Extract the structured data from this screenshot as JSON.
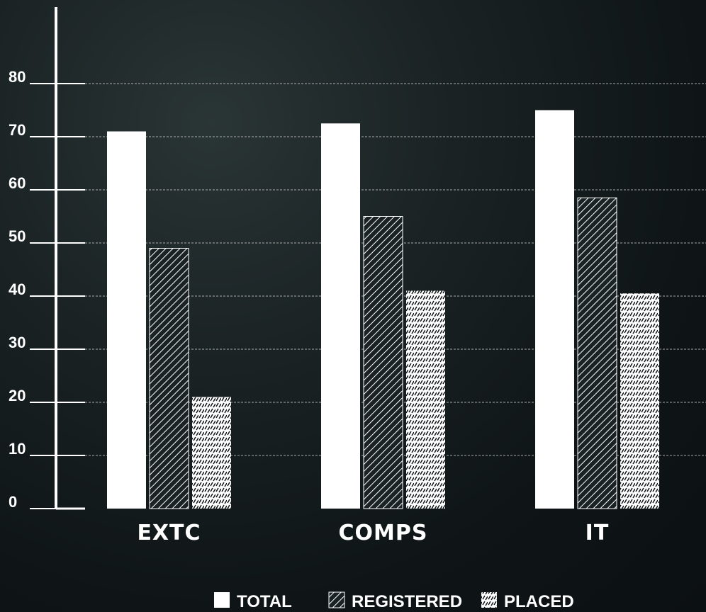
{
  "chart_data": {
    "type": "bar",
    "categories": [
      "EXTC",
      "COMPS",
      "IT"
    ],
    "series": [
      {
        "name": "TOTAL",
        "values": [
          71,
          72.5,
          75
        ],
        "pattern": "solid"
      },
      {
        "name": "REGISTERED",
        "values": [
          49,
          55,
          58.5
        ],
        "pattern": "diagonal"
      },
      {
        "name": "PLACED",
        "values": [
          21,
          41,
          40.5
        ],
        "pattern": "dashes"
      }
    ],
    "y_ticks": [
      "0",
      "10",
      "20",
      "30",
      "40",
      "50",
      "60",
      "70",
      "80"
    ],
    "ylim": [
      0,
      80
    ],
    "grid": true,
    "legend_position": "bottom",
    "colors": {
      "bars": "#ffffff",
      "grid": "#d8d8d8",
      "axis": "#ffffff",
      "text": "#ffffff"
    }
  }
}
